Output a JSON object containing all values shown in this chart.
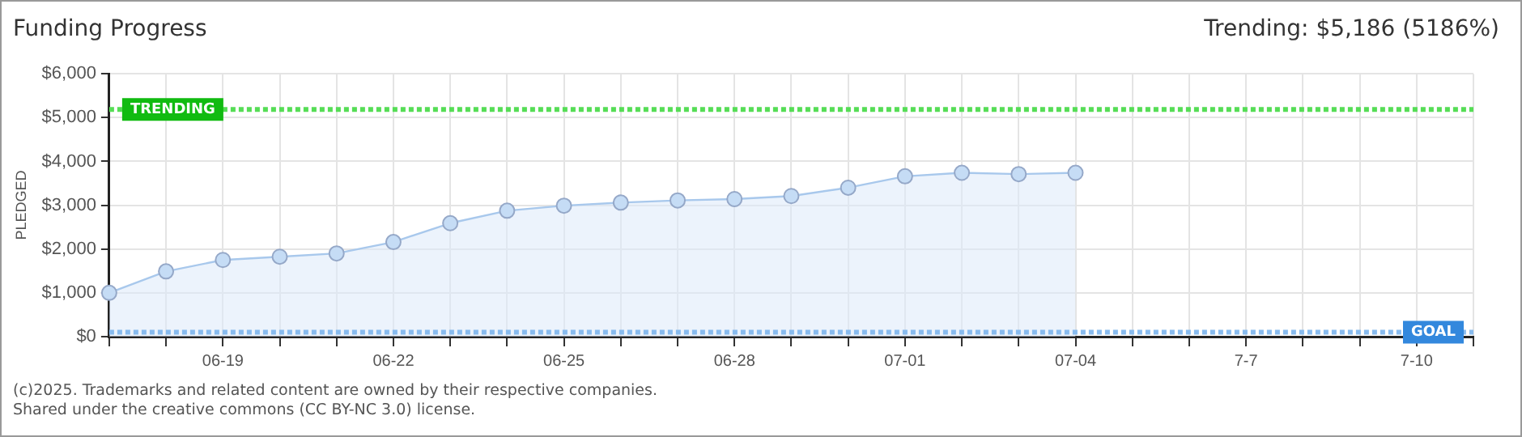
{
  "chart_data": {
    "type": "area",
    "title": "Funding Progress",
    "subtitle": "Trending:  $5,186 (5186%)",
    "ylabel": "PLEDGED",
    "categories": [
      null,
      null,
      "06-19",
      null,
      null,
      "06-22",
      null,
      null,
      "06-25",
      null,
      null,
      "06-28",
      null,
      null,
      "07-01",
      null,
      null,
      "07-04",
      null,
      null,
      "7-7",
      null,
      null,
      "7-10",
      null
    ],
    "series": [
      {
        "color": "#a8c8ec",
        "values": [
          1000,
          1490,
          1750,
          1825,
          1900,
          2160,
          2590,
          2875,
          2990,
          3060,
          3110,
          3140,
          3210,
          3400,
          3660,
          3740,
          3710,
          3740,
          null,
          null,
          null,
          null,
          null,
          null,
          null
        ]
      }
    ],
    "ylim": [
      0,
      6000
    ],
    "yticks": [
      {
        "value": 0,
        "label": "$0"
      },
      {
        "value": 1000,
        "label": "$1,000"
      },
      {
        "value": 2000,
        "label": "$2,000"
      },
      {
        "value": 3000,
        "label": "$3,000"
      },
      {
        "value": 4000,
        "label": "$4,000"
      },
      {
        "value": 5000,
        "label": "$5,000"
      },
      {
        "value": 6000,
        "label": "$6,000"
      }
    ],
    "grid": true,
    "legend": false,
    "marker": "circle",
    "line_style": "solid",
    "ref_lines": [
      {
        "axis": "y",
        "value": 5186,
        "label": "TRENDING",
        "color": "#55dd55",
        "line_style": "dotted"
      },
      {
        "axis": "y",
        "value": 100,
        "label": "GOAL",
        "color": "#88bbee",
        "line_style": "dotted"
      }
    ],
    "annotations": [
      "(c)2025. Trademarks and related content are owned by their respective companies.",
      "Shared under the creative commons (CC BY-NC 3.0) license."
    ]
  }
}
